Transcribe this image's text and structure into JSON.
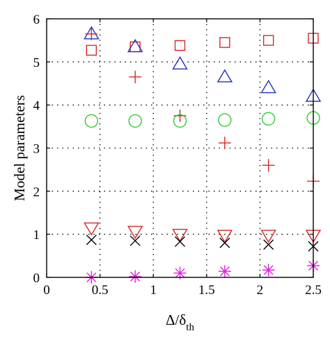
{
  "chart_data": {
    "type": "scatter",
    "title": "",
    "xlabel": "Δ/δ",
    "xlabel_subscript": "th",
    "ylabel": "Model parameters",
    "xlim": [
      0,
      2.5
    ],
    "ylim": [
      0,
      6
    ],
    "xticks": [
      0,
      0.5,
      1,
      1.5,
      2,
      2.5
    ],
    "xtick_labels": [
      "0",
      "0.5",
      "1",
      "1.5",
      "2",
      "2.5"
    ],
    "yticks": [
      0,
      1,
      2,
      3,
      4,
      5,
      6
    ],
    "ytick_labels": [
      "0",
      "1",
      "2",
      "3",
      "4",
      "5",
      "6"
    ],
    "grid": true,
    "legend": "none",
    "x": [
      0.42,
      0.83,
      1.25,
      1.67,
      2.08,
      2.5
    ],
    "series": [
      {
        "marker": "square",
        "color": "#d62728",
        "values": [
          5.27,
          5.35,
          5.38,
          5.45,
          5.5,
          5.55
        ]
      },
      {
        "marker": "triangle-up",
        "color": "#1f2fbf",
        "values": [
          5.65,
          5.35,
          4.95,
          4.65,
          4.4,
          4.2
        ]
      },
      {
        "marker": "plus",
        "color": "#d62728",
        "values": [
          5.65,
          4.65,
          3.75,
          3.12,
          2.6,
          2.23
        ]
      },
      {
        "marker": "circle",
        "color": "#33cc33",
        "values": [
          3.63,
          3.63,
          3.63,
          3.65,
          3.68,
          3.7
        ]
      },
      {
        "marker": "triangle-down",
        "color": "#d62728",
        "values": [
          1.15,
          1.07,
          1.0,
          0.98,
          0.98,
          0.98
        ]
      },
      {
        "marker": "x",
        "color": "#000000",
        "values": [
          0.87,
          0.85,
          0.83,
          0.8,
          0.76,
          0.72
        ]
      },
      {
        "marker": "asterisk",
        "color": "#dd22dd",
        "values": [
          0.0,
          0.02,
          0.1,
          0.14,
          0.17,
          0.27
        ]
      }
    ]
  }
}
